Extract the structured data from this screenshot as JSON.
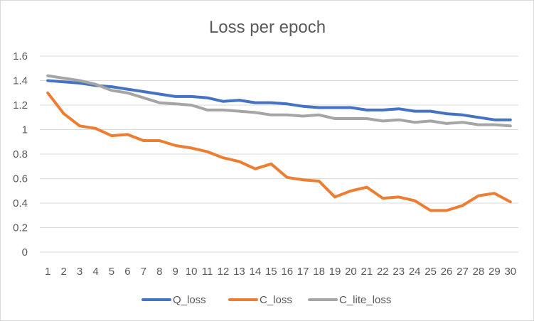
{
  "chart_data": {
    "type": "line",
    "title": "Loss per epoch",
    "xlabel": "",
    "ylabel": "",
    "categories": [
      "1",
      "2",
      "3",
      "4",
      "5",
      "6",
      "7",
      "8",
      "9",
      "10",
      "11",
      "12",
      "13",
      "14",
      "15",
      "16",
      "17",
      "18",
      "19",
      "20",
      "21",
      "22",
      "23",
      "24",
      "25",
      "26",
      "27",
      "28",
      "29",
      "30"
    ],
    "ylim": [
      0,
      1.6
    ],
    "yticks": [
      "0",
      "0.2",
      "0.4",
      "0.6",
      "0.8",
      "1",
      "1.2",
      "1.4",
      "1.6"
    ],
    "grid": "horizontal",
    "legend_position": "bottom",
    "series": [
      {
        "name": "Q_loss",
        "color": "#4472c4",
        "values": [
          1.4,
          1.39,
          1.38,
          1.36,
          1.35,
          1.33,
          1.31,
          1.29,
          1.27,
          1.27,
          1.26,
          1.23,
          1.24,
          1.22,
          1.22,
          1.21,
          1.19,
          1.18,
          1.18,
          1.18,
          1.16,
          1.16,
          1.17,
          1.15,
          1.15,
          1.13,
          1.12,
          1.1,
          1.08,
          1.08
        ]
      },
      {
        "name": "C_loss",
        "color": "#ed7d31",
        "values": [
          1.3,
          1.13,
          1.03,
          1.01,
          0.95,
          0.96,
          0.91,
          0.91,
          0.87,
          0.85,
          0.82,
          0.77,
          0.74,
          0.68,
          0.72,
          0.61,
          0.59,
          0.58,
          0.45,
          0.5,
          0.53,
          0.44,
          0.45,
          0.42,
          0.34,
          0.34,
          0.38,
          0.46,
          0.48,
          0.41
        ]
      },
      {
        "name": "C_lite_loss",
        "color": "#a5a5a5",
        "values": [
          1.44,
          1.42,
          1.4,
          1.37,
          1.32,
          1.3,
          1.26,
          1.22,
          1.21,
          1.2,
          1.16,
          1.16,
          1.15,
          1.14,
          1.12,
          1.12,
          1.11,
          1.12,
          1.09,
          1.09,
          1.09,
          1.07,
          1.08,
          1.06,
          1.07,
          1.05,
          1.06,
          1.04,
          1.04,
          1.03
        ]
      }
    ]
  }
}
